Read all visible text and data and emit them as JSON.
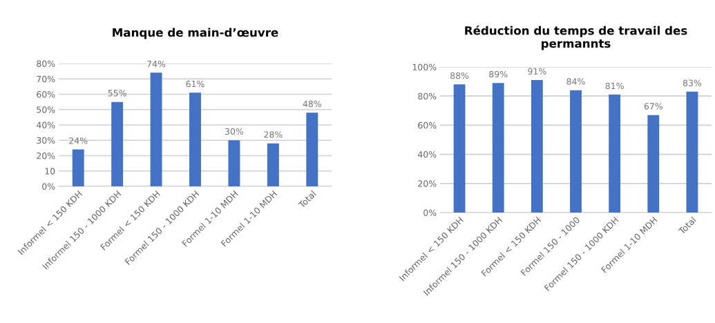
{
  "chart_data": [
    {
      "type": "bar",
      "title": "Manque de main-d’œuvre",
      "categories": [
        "Informel < 150 KDH",
        "Informel 150 - 1000 KDH",
        "Formel < 150 KDH",
        "Formel 150 - 1000 KDH",
        "Formel 1-10 MDH",
        "Formel 1-10 MDH",
        "Total"
      ],
      "values": [
        24,
        55,
        74,
        61,
        30,
        28,
        48
      ],
      "value_labels": [
        "24%",
        "55%",
        "74%",
        "61%",
        "30%",
        "28%",
        "48%"
      ],
      "color": "#4472c4",
      "ylim": [
        0,
        80
      ],
      "yticks": [
        {
          "value": 0,
          "label": "0%"
        },
        10,
        {
          "value": 20,
          "label": "20%"
        },
        {
          "value": 30,
          "label": "30%"
        },
        {
          "value": 40,
          "label": "40%"
        },
        {
          "value": 50,
          "label": "50%"
        },
        {
          "value": 60,
          "label": "60%"
        },
        {
          "value": 70,
          "label": "70%"
        },
        {
          "value": 80,
          "label": "80%"
        }
      ],
      "grid": "y"
    },
    {
      "type": "bar",
      "title": "Réduction du temps de travail des permannts",
      "categories": [
        "Informel < 150 KDH",
        "Informel 150 - 1000 KDH",
        "Formel < 150 KDH",
        "Formel 150 - 1000",
        "Formel 150 - 1000 KDH",
        "Formel 1-10 MDH",
        "Total"
      ],
      "values": [
        88,
        89,
        91,
        84,
        81,
        67,
        83
      ],
      "value_labels": [
        "88%",
        "89%",
        "91%",
        "84%",
        "81%",
        "67%",
        "83%"
      ],
      "color": "#4472c4",
      "ylim": [
        0,
        100
      ],
      "yticks": [
        {
          "value": 0,
          "label": "0%"
        },
        {
          "value": 20,
          "label": "20%"
        },
        {
          "value": 40,
          "label": "40%"
        },
        {
          "value": 60,
          "label": "60%"
        },
        {
          "value": 80,
          "label": "80%"
        },
        {
          "value": 100,
          "label": "100%"
        }
      ],
      "grid": "y"
    }
  ]
}
